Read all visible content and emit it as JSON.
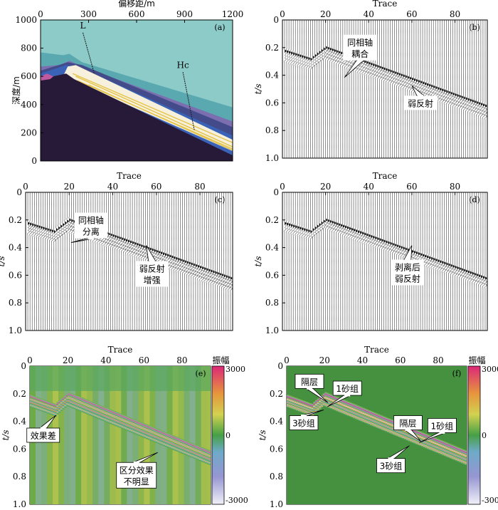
{
  "chart_data": [
    {
      "panel": "(a)",
      "type": "geologic_section",
      "xlabel": "偏移距/m",
      "ylabel": "深度/m",
      "xlim": [
        0,
        1200
      ],
      "ylim": [
        0,
        1000
      ],
      "xticks": [
        "0",
        "300",
        "600",
        "900",
        "1200"
      ],
      "yticks": [
        "0",
        "200",
        "400",
        "600",
        "800",
        "1000"
      ],
      "wells": [
        {
          "label": "L",
          "x": 300,
          "depth_top": 90,
          "depth_bottom": 380
        },
        {
          "label": "Hc",
          "x": 925,
          "depth_top": 370,
          "depth_bottom": 780
        }
      ],
      "colors": {
        "overburden": "#8dcbc8",
        "wedge": "#434b8a",
        "reservoir": "#f6f0dc",
        "basement": "#271a38"
      }
    },
    {
      "panel": "(b)",
      "type": "seismic_wiggle",
      "xlabel": "Trace",
      "ylabel": "t/s",
      "xlim": [
        0,
        95
      ],
      "ylim": [
        1.0,
        0
      ],
      "xticks": [
        "0",
        "20",
        "40",
        "60",
        "80"
      ],
      "yticks": [
        "0",
        "0.2",
        "0.4",
        "0.6",
        "0.8",
        "1.0"
      ],
      "annotations": [
        {
          "text": [
            "同相轴",
            "耦合"
          ],
          "x": 36,
          "t": 0.2
        },
        {
          "text": [
            "弱反射"
          ],
          "x": 64,
          "t": 0.6
        }
      ]
    },
    {
      "panel": "(c)",
      "type": "seismic_wiggle",
      "xlabel": "Trace",
      "ylabel": "t/s",
      "xlim": [
        0,
        95
      ],
      "ylim": [
        1.0,
        0
      ],
      "xticks": [
        "0",
        "20",
        "40",
        "60",
        "80"
      ],
      "yticks": [
        "0",
        "0.2",
        "0.4",
        "0.6",
        "0.8",
        "1.0"
      ],
      "annotations": [
        {
          "text": [
            "同相轴",
            "分离"
          ],
          "x": 30,
          "t": 0.24
        },
        {
          "text": [
            "弱反射",
            "增强"
          ],
          "x": 58,
          "t": 0.59
        }
      ]
    },
    {
      "panel": "(d)",
      "type": "seismic_wiggle",
      "xlabel": "Trace",
      "ylabel": "t/s",
      "xlim": [
        0,
        95
      ],
      "ylim": [
        1.0,
        0
      ],
      "xticks": [
        "0",
        "20",
        "40",
        "60",
        "80"
      ],
      "yticks": [
        "0",
        "0.2",
        "0.4",
        "0.6",
        "0.8",
        "1.0"
      ],
      "annotations": [
        {
          "text": [
            "剥离后",
            "弱反射"
          ],
          "x": 58,
          "t": 0.58
        }
      ]
    },
    {
      "panel": "(e)",
      "type": "heatmap",
      "xlabel": "Trace",
      "ylabel": "t/s",
      "xlim": [
        0,
        95
      ],
      "ylim": [
        1.0,
        0
      ],
      "xticks": [
        "0",
        "20",
        "40",
        "60",
        "80"
      ],
      "yticks": [
        "0",
        "0.2",
        "0.4",
        "0.6",
        "0.8",
        "1.0"
      ],
      "colorbar": {
        "title": "振幅",
        "ticks": [
          "3000",
          "0",
          "-3000"
        ],
        "range": [
          -3000,
          3000
        ]
      },
      "annotations": [
        {
          "text": [
            "效果差"
          ],
          "x": 7,
          "t": 0.5
        },
        {
          "text": [
            "区分效果",
            "不明显"
          ],
          "x": 56,
          "t": 0.79
        }
      ]
    },
    {
      "panel": "(f)",
      "type": "heatmap",
      "xlabel": "Trace",
      "ylabel": "t/s",
      "xlim": [
        0,
        95
      ],
      "ylim": [
        1.0,
        0
      ],
      "xticks": [
        "0",
        "20",
        "40",
        "60",
        "80"
      ],
      "yticks": [
        "0",
        "0.2",
        "0.4",
        "0.6",
        "0.8",
        "1.0"
      ],
      "colorbar": {
        "title": "振幅",
        "ticks": [
          "3000",
          "0",
          "-3000"
        ],
        "range": [
          -3000,
          3000
        ]
      },
      "annotations": [
        {
          "text": [
            "隔层"
          ],
          "x": 12,
          "t": 0.11
        },
        {
          "text": [
            "1砂组"
          ],
          "x": 32,
          "t": 0.16
        },
        {
          "text": [
            "3砂组"
          ],
          "x": 9,
          "t": 0.41
        },
        {
          "text": [
            "隔层"
          ],
          "x": 64,
          "t": 0.41
        },
        {
          "text": [
            "1砂组"
          ],
          "x": 82,
          "t": 0.43
        },
        {
          "text": [
            "3砂组"
          ],
          "x": 55,
          "t": 0.72
        }
      ]
    }
  ]
}
